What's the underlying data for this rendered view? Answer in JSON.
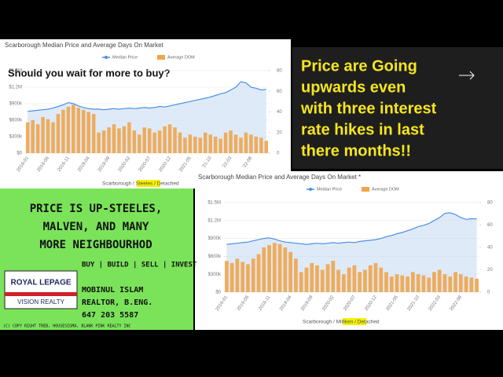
{
  "charts": [
    {
      "type": "bar-line",
      "title": "Scarborough Median Price and Average Days On Market",
      "overlay": "Should you wait for more to buy?",
      "legend": [
        "Median Price",
        "Average DOM"
      ],
      "footer": "Scarborough / Steeles / Detached",
      "categories": [
        "2016-01",
        null,
        null,
        null,
        "2016-06",
        null,
        null,
        null,
        "2016-11",
        null,
        null,
        null,
        "2019-04",
        null,
        null,
        null,
        "2019-09",
        null,
        null,
        null,
        "2020-02",
        null,
        null,
        null,
        "2020-07",
        null,
        null,
        null,
        "2020-12",
        null,
        null,
        null,
        "2021-05",
        null,
        null,
        null,
        "'21-10",
        null,
        null,
        null,
        "'22-03",
        null,
        null,
        null,
        "'22-08",
        null,
        null,
        null
      ],
      "series": [
        {
          "name": "Median Price",
          "color": "#4a90e2",
          "axis": "y",
          "values": [
            760,
            770,
            780,
            790,
            800,
            820,
            850,
            880,
            920,
            900,
            860,
            830,
            810,
            800,
            800,
            790,
            800,
            810,
            800,
            810,
            820,
            810,
            820,
            830,
            820,
            830,
            850,
            840,
            860,
            880,
            900,
            920,
            940,
            960,
            980,
            1000,
            1020,
            1050,
            1080,
            1100,
            1150,
            1200,
            1300,
            1280,
            1200,
            1180,
            1150,
            1160
          ]
        },
        {
          "name": "Average DOM",
          "color": "#f0a54a",
          "axis": "y2",
          "values": [
            30,
            32,
            28,
            35,
            33,
            30,
            38,
            42,
            45,
            47,
            44,
            42,
            40,
            38,
            20,
            22,
            25,
            28,
            24,
            26,
            30,
            22,
            18,
            25,
            24,
            20,
            22,
            26,
            28,
            25,
            20,
            15,
            18,
            16,
            15,
            20,
            18,
            16,
            14,
            20,
            22,
            18,
            15,
            20,
            18,
            16,
            15,
            12
          ]
        }
      ],
      "ylim": [
        0,
        1500
      ],
      "yticks": [
        {
          "value": 0,
          "label": "$0"
        },
        {
          "value": 300,
          "label": "$300k"
        },
        {
          "value": 600,
          "label": "$600k"
        },
        {
          "value": 900,
          "label": "$900k"
        },
        {
          "value": 1200,
          "label": "$1.2M"
        },
        {
          "value": 1500,
          "label": "$1.5M"
        }
      ],
      "y2lim": [
        0,
        80
      ],
      "y2ticks": [
        0,
        20,
        40,
        60,
        80
      ]
    },
    {
      "type": "bar-line",
      "title": "Scarborough Median Price and Average Days On Market *",
      "legend": [
        "Median Price",
        "Average DOM"
      ],
      "footer": "Scarborough / Milliken / Detached",
      "categories": [
        "2016-01",
        null,
        null,
        null,
        "2016-06",
        null,
        null,
        null,
        "2016-11",
        null,
        null,
        null,
        "2019-04",
        null,
        null,
        null,
        "2019-09",
        null,
        null,
        null,
        "2020-02",
        null,
        null,
        null,
        "2020-07",
        null,
        null,
        null,
        "2020-12",
        null,
        null,
        null,
        "2021-05",
        null,
        null,
        null,
        "2021-10",
        null,
        null,
        null,
        "2022-03",
        null,
        null,
        null,
        "2022-08",
        null,
        null,
        null
      ],
      "series": [
        {
          "name": "Median Price",
          "color": "#4a90e2",
          "axis": "y",
          "values": [
            800,
            810,
            820,
            830,
            840,
            860,
            880,
            900,
            910,
            890,
            860,
            840,
            830,
            820,
            810,
            800,
            810,
            820,
            810,
            820,
            830,
            820,
            830,
            840,
            830,
            850,
            860,
            870,
            880,
            900,
            930,
            950,
            980,
            1000,
            1030,
            1060,
            1100,
            1120,
            1150,
            1200,
            1250,
            1320,
            1330,
            1300,
            1250,
            1220,
            1230,
            1230
          ]
        },
        {
          "name": "Average DOM",
          "color": "#f0a54a",
          "axis": "y2",
          "values": [
            28,
            26,
            30,
            27,
            25,
            30,
            34,
            40,
            42,
            44,
            43,
            40,
            36,
            30,
            18,
            22,
            26,
            24,
            20,
            25,
            28,
            20,
            16,
            22,
            24,
            18,
            20,
            24,
            26,
            22,
            18,
            14,
            16,
            15,
            14,
            18,
            16,
            15,
            13,
            18,
            20,
            16,
            14,
            18,
            16,
            14,
            13,
            12
          ]
        }
      ],
      "ylim": [
        0,
        1500
      ],
      "yticks": [
        {
          "value": 0,
          "label": "$0"
        },
        {
          "value": 300,
          "label": "$300k"
        },
        {
          "value": 600,
          "label": "$600k"
        },
        {
          "value": 900,
          "label": "$900k"
        },
        {
          "value": 1200,
          "label": "$1.2M"
        },
        {
          "value": 1500,
          "label": "$1.5M"
        }
      ],
      "y2lim": [
        0,
        80
      ],
      "y2ticks": [
        0,
        20,
        40,
        60,
        80
      ]
    }
  ],
  "banner": {
    "lines": [
      "Price are Going",
      "upwards  even",
      "with three interest",
      "rate hikes in last",
      "there months!!"
    ]
  },
  "promo": {
    "headline": [
      "PRICE IS UP-STEELES,",
      "MALVEN, AND MANY",
      "MORE NEIGHBOURHOD"
    ],
    "services": "BUY | BUILD | SELL | INVEST",
    "logo": {
      "brand": "ROYAL LEPAGE",
      "office": "VISION REALTY"
    },
    "agent": [
      "MOBINUL ISLAM",
      "REALTOR, B.ENG.",
      "647 203 5587"
    ],
    "copyright": "(C) COPY RIGHT TREB, HOUSESIGMA, BLANK PINK REALTY INC"
  }
}
